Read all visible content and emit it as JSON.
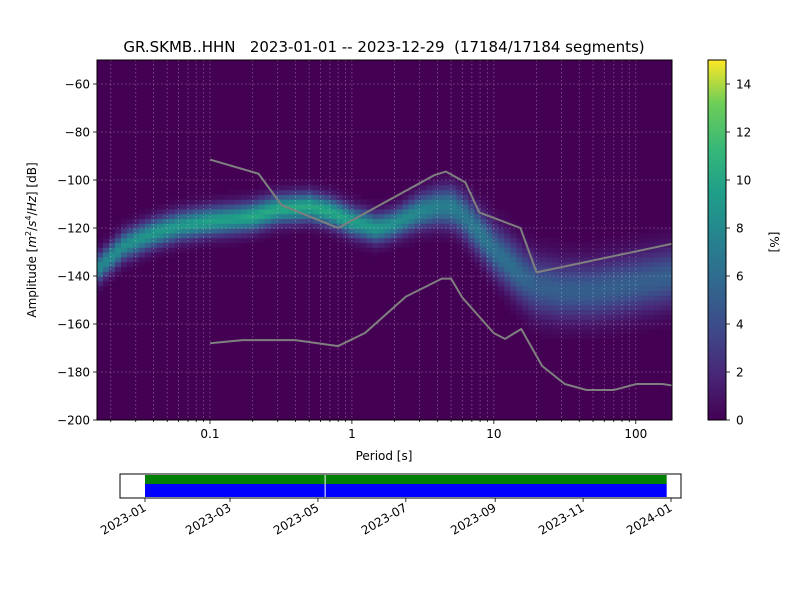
{
  "chart_data": [
    {
      "type": "heatmap",
      "title": "GR.SKMB..HHN   2023-01-01 -- 2023-12-29  (17184/17184 segments)",
      "xlabel": "Period [s]",
      "ylabel_parts": [
        "Amplitude [",
        "m",
        "2",
        "/",
        "s",
        "4",
        "/",
        "Hz",
        "] [dB]"
      ],
      "x_scale": "log",
      "xlim": [
        0.016,
        180
      ],
      "ylim": [
        -200,
        -50
      ],
      "x_ticks": [
        0.1,
        1,
        10,
        100
      ],
      "x_tick_labels": [
        "0.1",
        "1",
        "10",
        "100"
      ],
      "y_ticks": [
        -200,
        -180,
        -160,
        -140,
        -120,
        -100,
        -80,
        -60
      ],
      "y_tick_labels": [
        "−200",
        "−180",
        "−160",
        "−140",
        "−120",
        "−100",
        "−80",
        "−60"
      ],
      "grid": true,
      "colormap": "viridis",
      "colorbar": {
        "label": "[%]",
        "range": [
          0,
          15
        ],
        "ticks": [
          0,
          2,
          4,
          6,
          8,
          10,
          12,
          14
        ],
        "tick_labels": [
          "0",
          "2",
          "4",
          "6",
          "8",
          "10",
          "12",
          "14"
        ]
      },
      "psd_ridge": {
        "period": [
          0.016,
          0.025,
          0.04,
          0.06,
          0.1,
          0.15,
          0.2,
          0.3,
          0.5,
          0.7,
          1.0,
          1.5,
          2.0,
          3.0,
          4.0,
          5.0,
          6.0,
          8.0,
          10.0,
          13.0,
          16.0,
          20.0,
          30.0,
          50.0,
          100.0,
          180.0
        ],
        "amplitude_db": [
          -137,
          -127,
          -122,
          -119,
          -117,
          -116,
          -115,
          -112,
          -111,
          -113,
          -117,
          -120,
          -118,
          -113,
          -111,
          -111,
          -114,
          -122,
          -129,
          -135,
          -140,
          -144,
          -146,
          -146,
          -143,
          -140
        ],
        "peak_percent": [
          7,
          7.5,
          8,
          8,
          8.5,
          8.5,
          9,
          9,
          9,
          9,
          8.5,
          8,
          7.5,
          7,
          6.5,
          6.5,
          6,
          6,
          5.5,
          5.5,
          5,
          4.5,
          4.5,
          4.5,
          4.5,
          4.5
        ]
      },
      "reference_curves": [
        {
          "period": [
            0.1,
            0.22,
            0.32,
            0.8,
            3.8,
            4.6,
            6.3,
            7.9,
            15.4,
            20,
            200
          ],
          "amplitude_db": [
            -91.5,
            -97.4,
            -110.5,
            -120,
            -98,
            -96.5,
            -101,
            -113.5,
            -120,
            -138.5,
            -126
          ]
        },
        {
          "period": [
            0.1,
            0.17,
            0.4,
            0.8,
            1.24,
            2.4,
            4.3,
            5,
            6,
            10,
            12,
            15.6,
            21.9,
            31.6,
            45,
            70,
            101,
            154,
            179
          ],
          "amplitude_db": [
            -168,
            -166.7,
            -166.7,
            -169.2,
            -163.7,
            -148.6,
            -141.1,
            -141.1,
            -149,
            -163.8,
            -166.2,
            -162.1,
            -177.5,
            -185,
            -187.5,
            -187.5,
            -185,
            -185,
            -185.6
          ]
        }
      ]
    },
    {
      "type": "timeline",
      "x_tick_labels": [
        "2023-01",
        "2023-03",
        "2023-05",
        "2023-07",
        "2023-09",
        "2023-11",
        "2024-01"
      ],
      "coverage_bars": [
        {
          "start": "2023-01-01",
          "end": "2023-12-29",
          "color": "#008000"
        },
        {
          "start": "2023-01-01",
          "end": "2023-12-29",
          "color": "#0000ff"
        }
      ],
      "gap": "2023-05-06"
    }
  ],
  "colors": {
    "background_low": "#440154",
    "reference_curve": "#7f7f7f",
    "grid": "#ffffff"
  }
}
